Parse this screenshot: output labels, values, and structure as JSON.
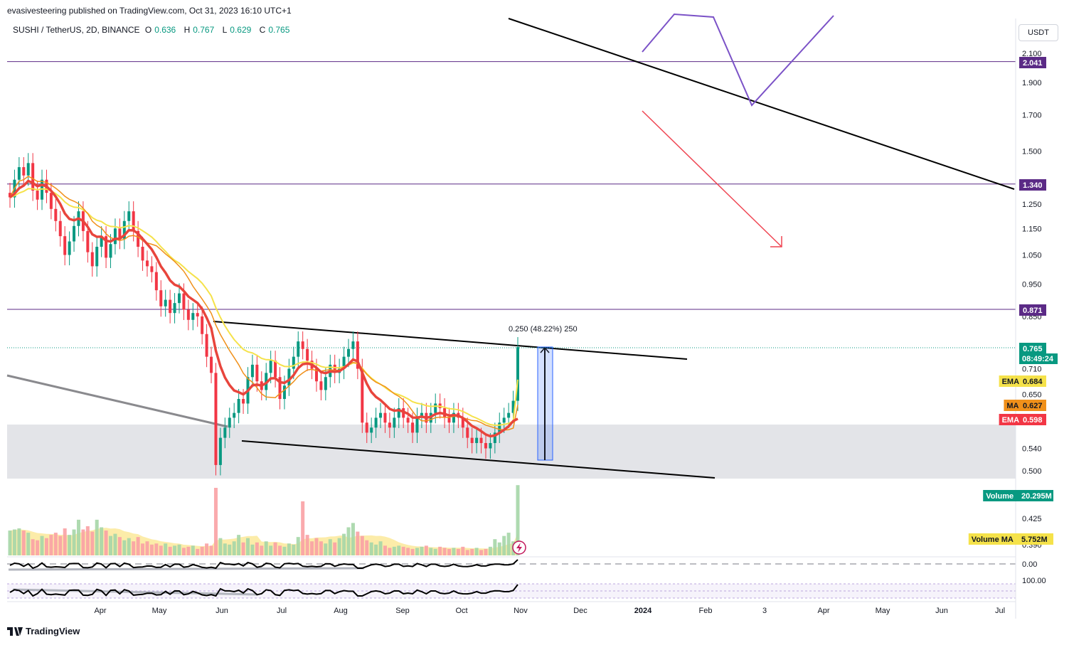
{
  "header": {
    "publisher": "evasivesteering published on TradingView.com, Oct 31, 2023 16:10 UTC+1",
    "symbol": "SUSHI / TetherUS, 2D, BINANCE",
    "o_label": "O",
    "o_value": "0.636",
    "h_label": "H",
    "h_value": "0.767",
    "l_label": "L",
    "l_value": "0.629",
    "c_label": "C",
    "c_value": "0.765"
  },
  "currency_button": "USDT",
  "footer": {
    "brand": "TradingView"
  },
  "colors": {
    "up": "#089981",
    "down": "#f23645",
    "ema_fast": "#e8453c",
    "ema_slow": "#f5e24a",
    "ma": "#f0901a",
    "volume_ma": "#fbe99a",
    "levels": "#5b2a86",
    "zone": "#e0e1e5",
    "measure": "#2962ff"
  },
  "measure_label": "0.250 (48.22%) 250",
  "chart_data": {
    "type": "candlestick",
    "title": "",
    "y_scale": "log",
    "y_ticks": [
      2.1,
      1.9,
      1.7,
      1.5,
      1.25,
      1.15,
      1.05,
      0.95,
      0.85,
      0.71,
      0.65,
      0.54,
      0.5,
      0.425,
      0.39
    ],
    "y_tick_labels": [
      "2.100",
      "1.900",
      "1.700",
      "1.500",
      "1.250",
      "1.150",
      "1.050",
      "0.950",
      "0.850",
      "0.710",
      "0.650",
      "0.540",
      "0.500",
      "0.425",
      "0.390"
    ],
    "x_tick_labels": [
      "Apr",
      "May",
      "Jun",
      "Jul",
      "Aug",
      "Sep",
      "Oct",
      "Nov",
      "Dec",
      "2024",
      "Feb",
      "3",
      "Apr",
      "May",
      "Jun",
      "Jul"
    ],
    "horizontal_levels": [
      2.041,
      1.34,
      0.871
    ],
    "support_zone": [
      0.49,
      0.595
    ],
    "current_price": 0.765,
    "countdown": "08:49:24",
    "price_tags": [
      {
        "label": "",
        "value": "2.041",
        "color": "#5b2a86",
        "text": "#ffffff"
      },
      {
        "label": "",
        "value": "1.340",
        "color": "#5b2a86",
        "text": "#ffffff"
      },
      {
        "label": "",
        "value": "0.871",
        "color": "#5b2a86",
        "text": "#ffffff"
      },
      {
        "label": "",
        "value": "0.765",
        "color": "#089981",
        "text": "#ffffff"
      },
      {
        "label": "EMA",
        "value": "0.684",
        "color": "#f5e24a",
        "text": "#131722"
      },
      {
        "label": "MA",
        "value": "0.627",
        "color": "#f0901a",
        "text": "#131722"
      },
      {
        "label": "EMA",
        "value": "0.598",
        "color": "#f23645",
        "text": "#ffffff"
      },
      {
        "label": "Volume",
        "value": "20.295M",
        "color": "#089981",
        "text": "#ffffff"
      },
      {
        "label": "Volume MA",
        "value": "5.752M",
        "color": "#f5e24a",
        "text": "#131722"
      }
    ],
    "osc_ticks": [
      "0.00",
      "100.00"
    ],
    "closes": [
      1.28,
      1.36,
      1.42,
      1.38,
      1.44,
      1.31,
      1.27,
      1.36,
      1.3,
      1.23,
      1.18,
      1.12,
      1.05,
      1.1,
      1.16,
      1.22,
      1.14,
      1.06,
      1.01,
      1.08,
      1.12,
      1.04,
      1.09,
      1.15,
      1.11,
      1.18,
      1.22,
      1.14,
      1.08,
      1.03,
      1.01,
      0.99,
      0.93,
      0.88,
      0.9,
      0.86,
      0.89,
      0.92,
      0.87,
      0.84,
      0.86,
      0.85,
      0.8,
      0.74,
      0.7,
      0.51,
      0.56,
      0.58,
      0.6,
      0.61,
      0.64,
      0.63,
      0.69,
      0.72,
      0.68,
      0.66,
      0.7,
      0.73,
      0.69,
      0.64,
      0.67,
      0.71,
      0.74,
      0.78,
      0.76,
      0.73,
      0.71,
      0.68,
      0.66,
      0.69,
      0.72,
      0.7,
      0.71,
      0.74,
      0.76,
      0.78,
      0.71,
      0.59,
      0.57,
      0.58,
      0.6,
      0.61,
      0.59,
      0.58,
      0.6,
      0.62,
      0.6,
      0.59,
      0.57,
      0.6,
      0.61,
      0.59,
      0.61,
      0.63,
      0.62,
      0.6,
      0.59,
      0.61,
      0.6,
      0.58,
      0.56,
      0.55,
      0.56,
      0.55,
      0.54,
      0.55,
      0.57,
      0.59,
      0.6,
      0.61,
      0.636,
      0.765
    ],
    "volumes_m": [
      4.6,
      4.8,
      5.0,
      4.6,
      4.2,
      3.0,
      2.8,
      3.6,
      3.2,
      3.8,
      4.2,
      3.6,
      5.0,
      3.8,
      4.8,
      6.6,
      4.8,
      5.4,
      4.4,
      6.6,
      5.2,
      4.6,
      3.6,
      4.0,
      3.4,
      2.8,
      3.2,
      2.6,
      3.4,
      2.2,
      2.6,
      2.0,
      2.2,
      1.8,
      2.2,
      1.6,
      1.8,
      2.0,
      1.4,
      1.6,
      1.8,
      1.2,
      1.6,
      2.2,
      1.8,
      12.5,
      3.2,
      2.2,
      2.0,
      2.6,
      3.8,
      2.4,
      3.2,
      2.0,
      2.4,
      1.8,
      2.6,
      1.8,
      2.4,
      1.8,
      1.6,
      2.2,
      2.0,
      3.4,
      10.0,
      3.8,
      2.6,
      3.2,
      2.6,
      2.2,
      3.0,
      2.4,
      3.2,
      4.0,
      5.2,
      6.0,
      4.4,
      3.6,
      2.8,
      2.4,
      2.0,
      2.6,
      1.8,
      1.4,
      1.6,
      1.8,
      1.6,
      1.4,
      1.2,
      1.4,
      1.6,
      1.8,
      1.4,
      1.2,
      1.6,
      1.4,
      1.2,
      1.4,
      1.2,
      1.6,
      1.0,
      1.2,
      1.4,
      1.0,
      1.2,
      1.6,
      3.0,
      2.4,
      3.6,
      4.2,
      2.6,
      20.295
    ],
    "ema_fast_label": "EMA",
    "ema_fast_last": 0.598,
    "ema_slow_label": "EMA",
    "ema_slow_last": 0.684,
    "ma_label": "MA",
    "ma_last": 0.627,
    "volume_label": "Volume",
    "volume_last": "20.295M",
    "volume_ma_label": "Volume MA",
    "volume_ma_last": "5.752M"
  }
}
